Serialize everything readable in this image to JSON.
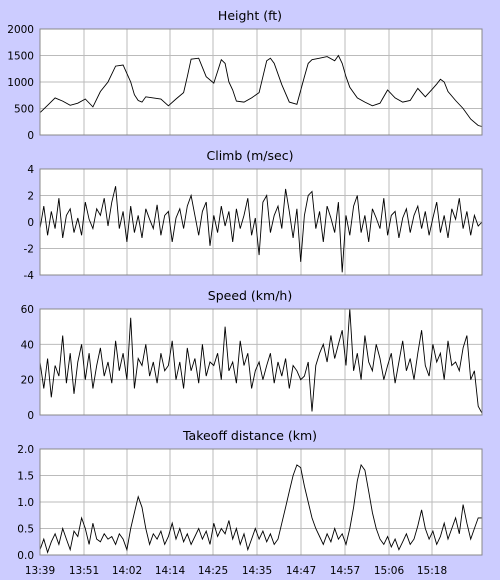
{
  "page": {
    "background": "#ccccff",
    "plot_background": "#ffffff",
    "grid_color": "#bbbbbb",
    "line_color": "#000000"
  },
  "chart_data": [
    {
      "type": "line",
      "title": "Height (ft)",
      "xlabel": "",
      "ylabel": "",
      "ylim": [
        0,
        2000
      ],
      "yticks": [
        "0",
        "500",
        "1000",
        "1500",
        "2000"
      ],
      "grid": true,
      "x_tick_labels": [
        "13:39",
        "13:51",
        "14:02",
        "14:14",
        "14:25",
        "14:35",
        "14:47",
        "14:57",
        "15:06",
        "15:18"
      ],
      "x_range_minutes": [
        0,
        117
      ],
      "series": [
        {
          "x": [
            0,
            2,
            4,
            6,
            8,
            10,
            12,
            14,
            16,
            18,
            20,
            22,
            24,
            25,
            26,
            27,
            28,
            30,
            32,
            34,
            36,
            38,
            39,
            40,
            42,
            44,
            46,
            47,
            48,
            49,
            50,
            51,
            52,
            54,
            56,
            58,
            59,
            60,
            61,
            62,
            64,
            66,
            68,
            70,
            71,
            72,
            74,
            76,
            78,
            79,
            80,
            81,
            82,
            84,
            86,
            88,
            90,
            92,
            94,
            96,
            98,
            100,
            102,
            104,
            105,
            106,
            107,
            108,
            110,
            112,
            114,
            116,
            117
          ],
          "values": [
            420,
            560,
            700,
            640,
            560,
            600,
            680,
            530,
            820,
            1000,
            1300,
            1320,
            1000,
            760,
            650,
            620,
            720,
            700,
            680,
            550,
            680,
            800,
            1100,
            1430,
            1450,
            1100,
            980,
            1200,
            1420,
            1350,
            1000,
            850,
            640,
            620,
            700,
            800,
            1100,
            1400,
            1450,
            1350,
            950,
            620,
            580,
            1100,
            1350,
            1420,
            1450,
            1480,
            1400,
            1500,
            1350,
            1100,
            900,
            700,
            620,
            550,
            600,
            850,
            700,
            620,
            650,
            880,
            720,
            880,
            960,
            1050,
            1000,
            820,
            650,
            500,
            300,
            180,
            160
          ]
        }
      ]
    },
    {
      "type": "line",
      "title": "Climb (m/sec)",
      "xlabel": "",
      "ylabel": "",
      "ylim": [
        -4,
        4
      ],
      "yticks": [
        "-4",
        "-2",
        "0",
        "2",
        "4"
      ],
      "grid": true,
      "x_tick_labels": [
        "13:39",
        "13:51",
        "14:02",
        "14:14",
        "14:25",
        "14:35",
        "14:47",
        "14:57",
        "15:06",
        "15:18"
      ],
      "x_range_minutes": [
        0,
        117
      ],
      "series": [
        {
          "x": [
            0,
            1,
            2,
            3,
            4,
            5,
            6,
            7,
            8,
            9,
            10,
            11,
            12,
            13,
            14,
            15,
            16,
            17,
            18,
            19,
            20,
            21,
            22,
            23,
            24,
            25,
            26,
            27,
            28,
            29,
            30,
            31,
            32,
            33,
            34,
            35,
            36,
            37,
            38,
            39,
            40,
            41,
            42,
            43,
            44,
            45,
            46,
            47,
            48,
            49,
            50,
            51,
            52,
            53,
            54,
            55,
            56,
            57,
            58,
            59,
            60,
            61,
            62,
            63,
            64,
            65,
            66,
            67,
            68,
            69,
            70,
            71,
            72,
            73,
            74,
            75,
            76,
            77,
            78,
            79,
            80,
            81,
            82,
            83,
            84,
            85,
            86,
            87,
            88,
            89,
            90,
            91,
            92,
            93,
            94,
            95,
            96,
            97,
            98,
            99,
            100,
            101,
            102,
            103,
            104,
            105,
            106,
            107,
            108,
            109,
            110,
            111,
            112,
            113,
            114,
            115,
            116,
            117
          ],
          "values": [
            -0.5,
            1.2,
            -1.0,
            0.8,
            -0.5,
            1.8,
            -1.2,
            0.5,
            1.0,
            -0.8,
            0.3,
            -1.0,
            1.5,
            0.2,
            -0.5,
            1.0,
            0.5,
            1.8,
            -0.3,
            1.5,
            2.7,
            -0.5,
            0.8,
            -1.5,
            1.2,
            -0.8,
            0.5,
            -1.2,
            1.0,
            0.2,
            -0.5,
            1.3,
            -1.0,
            0.5,
            0.8,
            -1.5,
            0.3,
            1.0,
            -0.5,
            1.2,
            2.0,
            0.5,
            -1.0,
            0.8,
            1.5,
            -1.8,
            0.5,
            -0.8,
            1.2,
            -0.3,
            0.8,
            -1.5,
            1.0,
            -0.5,
            0.5,
            1.8,
            -1.0,
            0.3,
            -2.5,
            1.5,
            2.0,
            -0.8,
            0.5,
            1.2,
            -0.5,
            2.5,
            0.8,
            -1.2,
            1.0,
            -3.0,
            0.5,
            2.0,
            2.3,
            -0.5,
            0.8,
            -1.5,
            1.2,
            0.3,
            -0.8,
            1.5,
            -3.8,
            0.5,
            -1.0,
            1.2,
            2.0,
            -0.8,
            0.5,
            -1.5,
            1.0,
            0.3,
            -0.5,
            1.8,
            -1.0,
            0.5,
            0.8,
            -1.2,
            0.3,
            1.0,
            -0.8,
            0.5,
            1.2,
            -0.5,
            0.8,
            -1.0,
            0.3,
            1.5,
            -0.8,
            0.5,
            -1.2,
            1.0,
            0.2,
            1.8,
            -0.5,
            0.8,
            -1.0,
            0.5,
            -0.3,
            0.0
          ]
        }
      ]
    },
    {
      "type": "line",
      "title": "Speed (km/h)",
      "xlabel": "",
      "ylabel": "",
      "ylim": [
        0,
        60
      ],
      "yticks": [
        "0",
        "20",
        "40",
        "60"
      ],
      "grid": true,
      "x_tick_labels": [
        "13:39",
        "13:51",
        "14:02",
        "14:14",
        "14:25",
        "14:35",
        "14:47",
        "14:57",
        "15:06",
        "15:18"
      ],
      "x_range_minutes": [
        0,
        117
      ],
      "series": [
        {
          "x": [
            0,
            1,
            2,
            3,
            4,
            5,
            6,
            7,
            8,
            9,
            10,
            11,
            12,
            13,
            14,
            15,
            16,
            17,
            18,
            19,
            20,
            21,
            22,
            23,
            24,
            25,
            26,
            27,
            28,
            29,
            30,
            31,
            32,
            33,
            34,
            35,
            36,
            37,
            38,
            39,
            40,
            41,
            42,
            43,
            44,
            45,
            46,
            47,
            48,
            49,
            50,
            51,
            52,
            53,
            54,
            55,
            56,
            57,
            58,
            59,
            60,
            61,
            62,
            63,
            64,
            65,
            66,
            67,
            68,
            69,
            70,
            71,
            72,
            73,
            74,
            75,
            76,
            77,
            78,
            79,
            80,
            81,
            82,
            83,
            84,
            85,
            86,
            87,
            88,
            89,
            90,
            91,
            92,
            93,
            94,
            95,
            96,
            97,
            98,
            99,
            100,
            101,
            102,
            103,
            104,
            105,
            106,
            107,
            108,
            109,
            110,
            111,
            112,
            113,
            114,
            115,
            116,
            117
          ],
          "values": [
            30,
            15,
            32,
            10,
            28,
            22,
            45,
            18,
            35,
            12,
            30,
            40,
            20,
            35,
            15,
            28,
            38,
            22,
            30,
            18,
            42,
            25,
            35,
            20,
            55,
            15,
            32,
            28,
            40,
            22,
            30,
            18,
            35,
            25,
            28,
            42,
            20,
            30,
            15,
            38,
            25,
            32,
            18,
            40,
            22,
            30,
            28,
            35,
            20,
            50,
            25,
            30,
            18,
            42,
            28,
            35,
            15,
            25,
            30,
            20,
            28,
            35,
            18,
            30,
            22,
            32,
            15,
            28,
            25,
            20,
            22,
            30,
            2,
            28,
            35,
            40,
            30,
            45,
            32,
            40,
            48,
            28,
            60,
            25,
            35,
            20,
            45,
            30,
            25,
            40,
            32,
            20,
            28,
            35,
            18,
            30,
            42,
            25,
            32,
            20,
            35,
            48,
            28,
            22,
            40,
            30,
            35,
            20,
            42,
            28,
            30,
            25,
            38,
            45,
            20,
            25,
            5,
            1
          ]
        }
      ]
    },
    {
      "type": "line",
      "title": "Takeoff distance (km)",
      "xlabel": "",
      "ylabel": "",
      "ylim": [
        0,
        2.0
      ],
      "yticks": [
        "0.0",
        "0.5",
        "1.0",
        "1.5",
        "2.0"
      ],
      "grid": true,
      "x_tick_labels": [
        "13:39",
        "13:51",
        "14:02",
        "14:14",
        "14:25",
        "14:35",
        "14:47",
        "14:57",
        "15:06",
        "15:18"
      ],
      "x_range_minutes": [
        0,
        117
      ],
      "series": [
        {
          "x": [
            0,
            1,
            2,
            3,
            4,
            5,
            6,
            7,
            8,
            9,
            10,
            11,
            12,
            13,
            14,
            15,
            16,
            17,
            18,
            19,
            20,
            21,
            22,
            23,
            24,
            25,
            26,
            27,
            28,
            29,
            30,
            31,
            32,
            33,
            34,
            35,
            36,
            37,
            38,
            39,
            40,
            41,
            42,
            43,
            44,
            45,
            46,
            47,
            48,
            49,
            50,
            51,
            52,
            53,
            54,
            55,
            56,
            57,
            58,
            59,
            60,
            61,
            62,
            63,
            64,
            65,
            66,
            67,
            68,
            69,
            70,
            71,
            72,
            73,
            74,
            75,
            76,
            77,
            78,
            79,
            80,
            81,
            82,
            83,
            84,
            85,
            86,
            87,
            88,
            89,
            90,
            91,
            92,
            93,
            94,
            95,
            96,
            97,
            98,
            99,
            100,
            101,
            102,
            103,
            104,
            105,
            106,
            107,
            108,
            109,
            110,
            111,
            112,
            113,
            114,
            115,
            116,
            117
          ],
          "values": [
            0.1,
            0.3,
            0.05,
            0.25,
            0.4,
            0.2,
            0.5,
            0.3,
            0.1,
            0.45,
            0.35,
            0.7,
            0.5,
            0.2,
            0.6,
            0.3,
            0.25,
            0.4,
            0.3,
            0.35,
            0.2,
            0.4,
            0.3,
            0.1,
            0.5,
            0.8,
            1.1,
            0.9,
            0.5,
            0.2,
            0.4,
            0.3,
            0.45,
            0.2,
            0.35,
            0.6,
            0.3,
            0.5,
            0.25,
            0.4,
            0.2,
            0.35,
            0.5,
            0.3,
            0.45,
            0.2,
            0.6,
            0.35,
            0.5,
            0.4,
            0.65,
            0.3,
            0.5,
            0.2,
            0.4,
            0.1,
            0.3,
            0.5,
            0.3,
            0.45,
            0.25,
            0.4,
            0.2,
            0.3,
            0.6,
            0.9,
            1.2,
            1.5,
            1.7,
            1.65,
            1.3,
            1.0,
            0.7,
            0.5,
            0.35,
            0.2,
            0.4,
            0.25,
            0.5,
            0.3,
            0.4,
            0.2,
            0.5,
            0.9,
            1.4,
            1.7,
            1.6,
            1.2,
            0.8,
            0.5,
            0.3,
            0.2,
            0.35,
            0.15,
            0.3,
            0.1,
            0.25,
            0.4,
            0.2,
            0.3,
            0.55,
            0.85,
            0.5,
            0.3,
            0.45,
            0.2,
            0.35,
            0.6,
            0.3,
            0.5,
            0.7,
            0.4,
            0.95,
            0.6,
            0.3,
            0.5,
            0.7,
            0.7
          ]
        }
      ]
    }
  ]
}
